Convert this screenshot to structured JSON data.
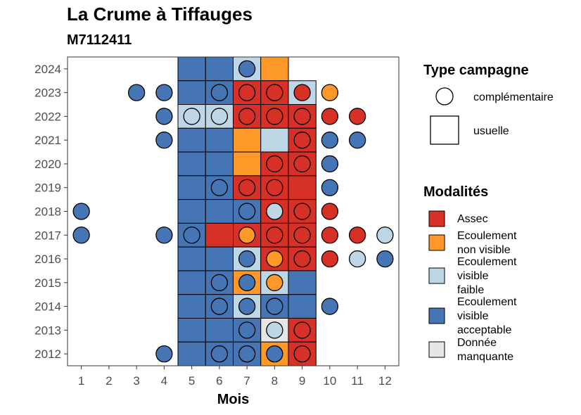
{
  "title": "La Crume à Tiffauges",
  "subtitle": "M7112411",
  "colors": {
    "Assec": "#d73027",
    "Ecoulement non visible": "#fe9929",
    "Ecoulement visible faible": "#bdd7e7",
    "Ecoulement visible acceptable": "#4575b4",
    "Donnée manquante": "#e6e6e6"
  },
  "legend_type": {
    "title": "Type campagne",
    "items": [
      "complémentaire",
      "usuelle"
    ]
  },
  "legend_mod": {
    "title": "Modalités",
    "items": [
      {
        "key": "Assec",
        "lines": [
          "Assec"
        ]
      },
      {
        "key": "Ecoulement non visible",
        "lines": [
          "Ecoulement",
          "non visible"
        ]
      },
      {
        "key": "Ecoulement visible faible",
        "lines": [
          "Ecoulement",
          "visible",
          "faible"
        ]
      },
      {
        "key": "Ecoulement visible acceptable",
        "lines": [
          "Ecoulement",
          "visible",
          "acceptable"
        ]
      },
      {
        "key": "Donnée manquante",
        "lines": [
          "Donnée",
          "manquante"
        ]
      }
    ]
  },
  "chart_data": {
    "type": "heatmap",
    "xlabel": "Mois",
    "ylabel": "",
    "x_ticks": [
      1,
      2,
      3,
      4,
      5,
      6,
      7,
      8,
      9,
      10,
      11,
      12
    ],
    "y_ticks": [
      2012,
      2013,
      2014,
      2015,
      2016,
      2017,
      2018,
      2019,
      2020,
      2021,
      2022,
      2023,
      2024
    ],
    "xlim": [
      0.5,
      12.5
    ],
    "ylim": [
      2011.5,
      2024.5
    ],
    "usuelle": [
      {
        "year": 2024,
        "month": 5,
        "mod": "Ecoulement visible acceptable"
      },
      {
        "year": 2024,
        "month": 6,
        "mod": "Ecoulement visible acceptable"
      },
      {
        "year": 2024,
        "month": 7,
        "mod": "Ecoulement visible faible"
      },
      {
        "year": 2024,
        "month": 8,
        "mod": "Ecoulement non visible"
      },
      {
        "year": 2023,
        "month": 5,
        "mod": "Ecoulement visible acceptable"
      },
      {
        "year": 2023,
        "month": 6,
        "mod": "Ecoulement visible acceptable"
      },
      {
        "year": 2023,
        "month": 7,
        "mod": "Assec"
      },
      {
        "year": 2023,
        "month": 8,
        "mod": "Assec"
      },
      {
        "year": 2023,
        "month": 9,
        "mod": "Ecoulement visible faible"
      },
      {
        "year": 2022,
        "month": 5,
        "mod": "Ecoulement visible faible"
      },
      {
        "year": 2022,
        "month": 6,
        "mod": "Ecoulement visible faible"
      },
      {
        "year": 2022,
        "month": 7,
        "mod": "Assec"
      },
      {
        "year": 2022,
        "month": 8,
        "mod": "Assec"
      },
      {
        "year": 2022,
        "month": 9,
        "mod": "Assec"
      },
      {
        "year": 2021,
        "month": 5,
        "mod": "Ecoulement visible acceptable"
      },
      {
        "year": 2021,
        "month": 6,
        "mod": "Ecoulement visible acceptable"
      },
      {
        "year": 2021,
        "month": 7,
        "mod": "Ecoulement non visible"
      },
      {
        "year": 2021,
        "month": 8,
        "mod": "Ecoulement visible faible"
      },
      {
        "year": 2021,
        "month": 9,
        "mod": "Assec"
      },
      {
        "year": 2020,
        "month": 5,
        "mod": "Ecoulement visible acceptable"
      },
      {
        "year": 2020,
        "month": 6,
        "mod": "Ecoulement visible acceptable"
      },
      {
        "year": 2020,
        "month": 7,
        "mod": "Ecoulement non visible"
      },
      {
        "year": 2020,
        "month": 8,
        "mod": "Assec"
      },
      {
        "year": 2020,
        "month": 9,
        "mod": "Assec"
      },
      {
        "year": 2019,
        "month": 5,
        "mod": "Ecoulement visible acceptable"
      },
      {
        "year": 2019,
        "month": 6,
        "mod": "Ecoulement visible acceptable"
      },
      {
        "year": 2019,
        "month": 7,
        "mod": "Assec"
      },
      {
        "year": 2019,
        "month": 8,
        "mod": "Assec"
      },
      {
        "year": 2019,
        "month": 9,
        "mod": "Assec"
      },
      {
        "year": 2018,
        "month": 5,
        "mod": "Ecoulement visible acceptable"
      },
      {
        "year": 2018,
        "month": 6,
        "mod": "Ecoulement visible acceptable"
      },
      {
        "year": 2018,
        "month": 7,
        "mod": "Ecoulement visible acceptable"
      },
      {
        "year": 2018,
        "month": 8,
        "mod": "Assec"
      },
      {
        "year": 2018,
        "month": 9,
        "mod": "Assec"
      },
      {
        "year": 2017,
        "month": 5,
        "mod": "Ecoulement visible acceptable"
      },
      {
        "year": 2017,
        "month": 6,
        "mod": "Assec"
      },
      {
        "year": 2017,
        "month": 7,
        "mod": "Assec"
      },
      {
        "year": 2017,
        "month": 8,
        "mod": "Assec"
      },
      {
        "year": 2017,
        "month": 9,
        "mod": "Assec"
      },
      {
        "year": 2016,
        "month": 5,
        "mod": "Ecoulement visible acceptable"
      },
      {
        "year": 2016,
        "month": 6,
        "mod": "Ecoulement visible acceptable"
      },
      {
        "year": 2016,
        "month": 7,
        "mod": "Ecoulement visible faible"
      },
      {
        "year": 2016,
        "month": 8,
        "mod": "Assec"
      },
      {
        "year": 2016,
        "month": 9,
        "mod": "Assec"
      },
      {
        "year": 2015,
        "month": 5,
        "mod": "Ecoulement visible acceptable"
      },
      {
        "year": 2015,
        "month": 6,
        "mod": "Ecoulement visible acceptable"
      },
      {
        "year": 2015,
        "month": 7,
        "mod": "Ecoulement non visible"
      },
      {
        "year": 2015,
        "month": 8,
        "mod": "Ecoulement visible faible"
      },
      {
        "year": 2015,
        "month": 9,
        "mod": "Ecoulement visible acceptable"
      },
      {
        "year": 2014,
        "month": 5,
        "mod": "Ecoulement visible acceptable"
      },
      {
        "year": 2014,
        "month": 6,
        "mod": "Ecoulement visible acceptable"
      },
      {
        "year": 2014,
        "month": 7,
        "mod": "Ecoulement visible faible"
      },
      {
        "year": 2014,
        "month": 8,
        "mod": "Ecoulement visible acceptable"
      },
      {
        "year": 2014,
        "month": 9,
        "mod": "Ecoulement visible acceptable"
      },
      {
        "year": 2013,
        "month": 5,
        "mod": "Ecoulement visible acceptable"
      },
      {
        "year": 2013,
        "month": 6,
        "mod": "Ecoulement visible acceptable"
      },
      {
        "year": 2013,
        "month": 7,
        "mod": "Ecoulement visible acceptable"
      },
      {
        "year": 2013,
        "month": 8,
        "mod": "Donnée manquante"
      },
      {
        "year": 2013,
        "month": 9,
        "mod": "Assec"
      },
      {
        "year": 2012,
        "month": 5,
        "mod": "Ecoulement visible acceptable"
      },
      {
        "year": 2012,
        "month": 6,
        "mod": "Ecoulement visible acceptable"
      },
      {
        "year": 2012,
        "month": 7,
        "mod": "Ecoulement visible acceptable"
      },
      {
        "year": 2012,
        "month": 8,
        "mod": "Ecoulement non visible"
      },
      {
        "year": 2012,
        "month": 9,
        "mod": "Assec"
      }
    ],
    "complementaire": [
      {
        "year": 2024,
        "month": 7,
        "mod": "Ecoulement visible acceptable"
      },
      {
        "year": 2023,
        "month": 3,
        "mod": "Ecoulement visible acceptable"
      },
      {
        "year": 2023,
        "month": 4,
        "mod": "Ecoulement visible acceptable"
      },
      {
        "year": 2023,
        "month": 6,
        "mod": "Ecoulement visible acceptable"
      },
      {
        "year": 2023,
        "month": 7,
        "mod": "Assec"
      },
      {
        "year": 2023,
        "month": 8,
        "mod": "Assec"
      },
      {
        "year": 2023,
        "month": 9,
        "mod": "Assec"
      },
      {
        "year": 2023,
        "month": 10,
        "mod": "Ecoulement non visible"
      },
      {
        "year": 2022,
        "month": 4,
        "mod": "Ecoulement visible acceptable"
      },
      {
        "year": 2022,
        "month": 5,
        "mod": "Ecoulement visible faible"
      },
      {
        "year": 2022,
        "month": 6,
        "mod": "Ecoulement visible faible"
      },
      {
        "year": 2022,
        "month": 7,
        "mod": "Assec"
      },
      {
        "year": 2022,
        "month": 8,
        "mod": "Assec"
      },
      {
        "year": 2022,
        "month": 9,
        "mod": "Assec"
      },
      {
        "year": 2022,
        "month": 10,
        "mod": "Assec"
      },
      {
        "year": 2022,
        "month": 11,
        "mod": "Assec"
      },
      {
        "year": 2021,
        "month": 4,
        "mod": "Ecoulement visible acceptable"
      },
      {
        "year": 2021,
        "month": 9,
        "mod": "Assec"
      },
      {
        "year": 2021,
        "month": 10,
        "mod": "Ecoulement visible acceptable"
      },
      {
        "year": 2021,
        "month": 11,
        "mod": "Ecoulement visible acceptable"
      },
      {
        "year": 2020,
        "month": 8,
        "mod": "Assec"
      },
      {
        "year": 2020,
        "month": 9,
        "mod": "Assec"
      },
      {
        "year": 2020,
        "month": 10,
        "mod": "Ecoulement visible acceptable"
      },
      {
        "year": 2019,
        "month": 6,
        "mod": "Ecoulement visible acceptable"
      },
      {
        "year": 2019,
        "month": 7,
        "mod": "Assec"
      },
      {
        "year": 2019,
        "month": 8,
        "mod": "Assec"
      },
      {
        "year": 2019,
        "month": 10,
        "mod": "Ecoulement visible acceptable"
      },
      {
        "year": 2018,
        "month": 1,
        "mod": "Ecoulement visible acceptable"
      },
      {
        "year": 2018,
        "month": 7,
        "mod": "Ecoulement visible acceptable"
      },
      {
        "year": 2018,
        "month": 8,
        "mod": "Ecoulement visible faible"
      },
      {
        "year": 2018,
        "month": 9,
        "mod": "Assec"
      },
      {
        "year": 2018,
        "month": 10,
        "mod": "Assec"
      },
      {
        "year": 2017,
        "month": 1,
        "mod": "Ecoulement visible acceptable"
      },
      {
        "year": 2017,
        "month": 4,
        "mod": "Ecoulement visible acceptable"
      },
      {
        "year": 2017,
        "month": 5,
        "mod": "Ecoulement visible acceptable"
      },
      {
        "year": 2017,
        "month": 7,
        "mod": "Ecoulement non visible"
      },
      {
        "year": 2017,
        "month": 8,
        "mod": "Assec"
      },
      {
        "year": 2017,
        "month": 9,
        "mod": "Assec"
      },
      {
        "year": 2017,
        "month": 10,
        "mod": "Assec"
      },
      {
        "year": 2017,
        "month": 11,
        "mod": "Assec"
      },
      {
        "year": 2017,
        "month": 12,
        "mod": "Ecoulement visible faible"
      },
      {
        "year": 2016,
        "month": 7,
        "mod": "Ecoulement visible acceptable"
      },
      {
        "year": 2016,
        "month": 8,
        "mod": "Ecoulement non visible"
      },
      {
        "year": 2016,
        "month": 9,
        "mod": "Assec"
      },
      {
        "year": 2016,
        "month": 10,
        "mod": "Assec"
      },
      {
        "year": 2016,
        "month": 11,
        "mod": "Ecoulement visible faible"
      },
      {
        "year": 2016,
        "month": 12,
        "mod": "Ecoulement visible acceptable"
      },
      {
        "year": 2015,
        "month": 6,
        "mod": "Ecoulement visible acceptable"
      },
      {
        "year": 2015,
        "month": 7,
        "mod": "Ecoulement visible acceptable"
      },
      {
        "year": 2015,
        "month": 8,
        "mod": "Ecoulement non visible"
      },
      {
        "year": 2014,
        "month": 6,
        "mod": "Ecoulement visible acceptable"
      },
      {
        "year": 2014,
        "month": 7,
        "mod": "Ecoulement visible acceptable"
      },
      {
        "year": 2014,
        "month": 8,
        "mod": "Ecoulement visible acceptable"
      },
      {
        "year": 2014,
        "month": 10,
        "mod": "Ecoulement visible acceptable"
      },
      {
        "year": 2013,
        "month": 7,
        "mod": "Ecoulement visible acceptable"
      },
      {
        "year": 2013,
        "month": 8,
        "mod": "Ecoulement visible faible"
      },
      {
        "year": 2013,
        "month": 9,
        "mod": "Assec"
      },
      {
        "year": 2012,
        "month": 4,
        "mod": "Ecoulement visible acceptable"
      },
      {
        "year": 2012,
        "month": 6,
        "mod": "Ecoulement visible acceptable"
      },
      {
        "year": 2012,
        "month": 7,
        "mod": "Ecoulement visible acceptable"
      },
      {
        "year": 2012,
        "month": 8,
        "mod": "Ecoulement visible acceptable"
      },
      {
        "year": 2012,
        "month": 9,
        "mod": "Assec"
      }
    ]
  }
}
